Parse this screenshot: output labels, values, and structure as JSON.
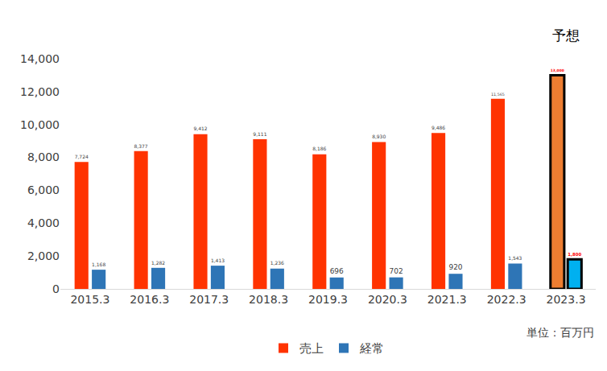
{
  "chart_data": {
    "type": "bar",
    "categories": [
      "2015.3",
      "2016.3",
      "2017.3",
      "2018.3",
      "2019.3",
      "2020.3",
      "2021.3",
      "2022.3",
      "2023.3"
    ],
    "series": [
      {
        "name": "売上",
        "color": "#ff3300",
        "colors": [
          "#ff3300",
          "#ff3300",
          "#ff3300",
          "#ff3300",
          "#ff3300",
          "#ff3300",
          "#ff3300",
          "#ff3300",
          "#ed7d31"
        ],
        "values": [
          7724,
          8377,
          9412,
          9111,
          8186,
          8930,
          9486,
          11565,
          13000
        ],
        "value_labels": [
          "7,724",
          "8,377",
          "9,412",
          "9,111",
          "8,186",
          "8,930",
          "9,486",
          "11,565",
          "13,000"
        ]
      },
      {
        "name": "経常",
        "color": "#2e75b6",
        "colors": [
          "#2e75b6",
          "#2e75b6",
          "#2e75b6",
          "#2e75b6",
          "#2e75b6",
          "#2e75b6",
          "#2e75b6",
          "#2e75b6",
          "#00b0f0"
        ],
        "values": [
          1168,
          1282,
          1413,
          1236,
          696,
          702,
          920,
          1543,
          1800
        ],
        "value_labels": [
          "1,168",
          "1,282",
          "1,413",
          "1,236",
          "696",
          "702",
          "920",
          "1,543",
          "1,800"
        ]
      }
    ],
    "ylim": [
      0,
      14000
    ],
    "yticks": [
      0,
      {
        "value": 2000,
        "label": "2,000"
      },
      {
        "value": 4000,
        "label": "4,000"
      },
      {
        "value": 6000,
        "label": "6,000"
      },
      {
        "value": 8000,
        "label": "8,000"
      },
      {
        "value": 10000,
        "label": "10,000"
      },
      {
        "value": 12000,
        "label": "12,000"
      },
      {
        "value": 14000,
        "label": "14,000"
      }
    ],
    "grid": false,
    "legend": "bottom",
    "data_labels": true,
    "annotations": [
      {
        "text": "予想",
        "x": "2023.3"
      },
      {
        "text": "単位：百万円"
      }
    ]
  }
}
